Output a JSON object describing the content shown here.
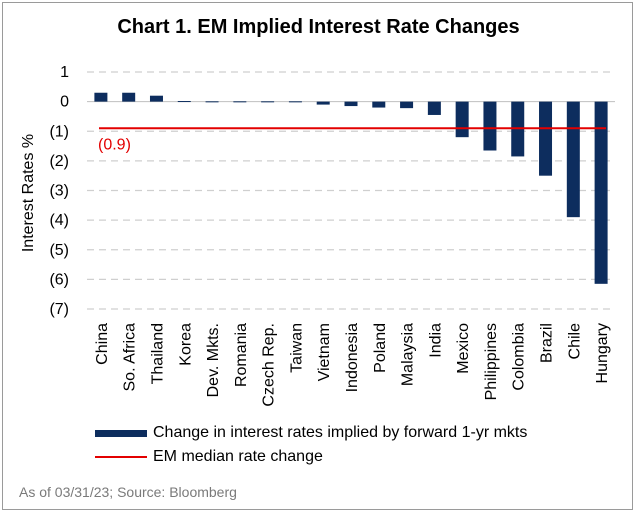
{
  "chart_data": {
    "type": "bar",
    "title": "Chart 1. EM Implied Interest Rate Changes",
    "ylabel": "Interest Rates %",
    "xlabel": "",
    "ylim": [
      -7,
      1
    ],
    "yticks": [
      1,
      0,
      -1,
      -2,
      -3,
      -4,
      -5,
      -6,
      -7
    ],
    "ytick_labels": [
      "1",
      "0",
      "(1)",
      "(2)",
      "(3)",
      "(4)",
      "(5)",
      "(6)",
      "(7)"
    ],
    "grid": "horizontal dashed",
    "categories": [
      "China",
      "So. Africa",
      "Thailand",
      "Korea",
      "Dev. Mkts.",
      "Romania",
      "Czech Rep.",
      "Taiwan",
      "Vietnam",
      "Indonesia",
      "Poland",
      "Malaysia",
      "India",
      "Mexico",
      "Philippines",
      "Colombia",
      "Brazil",
      "Chile",
      "Hungary"
    ],
    "series": [
      {
        "name": "Change in interest rates implied by forward 1-yr mkts",
        "type": "bar",
        "color": "#0d2d5e",
        "values": [
          0.3,
          0.3,
          0.2,
          0.02,
          0.01,
          0.01,
          0.01,
          0.01,
          -0.1,
          -0.15,
          -0.2,
          -0.22,
          -0.45,
          -1.2,
          -1.65,
          -1.85,
          -2.5,
          -3.9,
          -6.15
        ]
      },
      {
        "name": "EM median rate change",
        "type": "line",
        "color": "#e30000",
        "value": -0.9,
        "label": "(0.9)"
      }
    ],
    "legend_placement": "bottom-left"
  },
  "source_note": "As of 03/31/23; Source: Bloomberg"
}
